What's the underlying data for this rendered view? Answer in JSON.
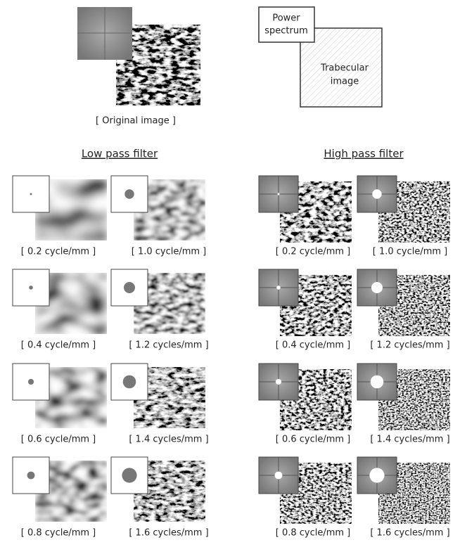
{
  "original": {
    "label": "[ Original image ]"
  },
  "legend": {
    "power_spectrum": [
      "Power",
      "spectrum"
    ],
    "trabecular_image": [
      "Trabecular",
      "image"
    ]
  },
  "low_pass": {
    "title": "Low pass filter",
    "labels": [
      "[ 0.2 cycle/mm ]",
      "[ 1.0 cycle/mm ]",
      "[ 0.4 cycle/mm ]",
      "[ 1.2 cycles/mm ]",
      "[ 0.6 cycle/mm ]",
      "[ 1.4 cycles/mm ]",
      "[ 0.8 cycle/mm ]",
      "[ 1.6 cycles/mm ]"
    ]
  },
  "high_pass": {
    "title": "High pass filter",
    "labels": [
      "[ 0.2 cycle/mm ]",
      "[ 1.0 cycle/mm ]",
      "[ 0.4 cycle/mm ]",
      "[ 1.2 cycles/mm ]",
      "[ 0.6 cycle/mm ]",
      "[ 1.4 cycles/mm ]",
      "[ 0.8 cycle/mm ]",
      "[ 1.6 cycles/mm ]"
    ]
  }
}
